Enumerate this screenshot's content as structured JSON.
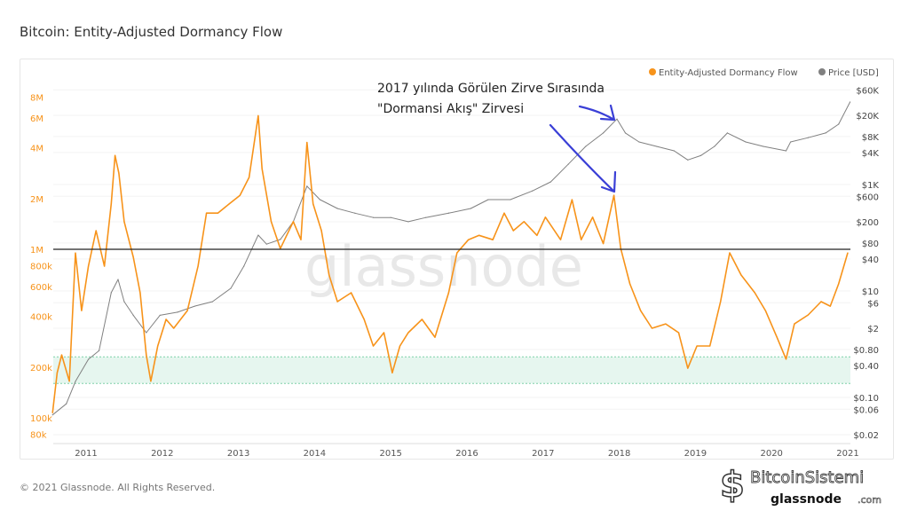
{
  "title": "Bitcoin: Entity-Adjusted Dormancy Flow",
  "footer": "© 2021 Glassnode. All Rights Reserved.",
  "watermark": "glassnode",
  "logo": {
    "brand": "BitcoinSistemi",
    "sub": "glassnode",
    "tld": ".com"
  },
  "annotation": {
    "line1": "2017 yılında Görülen Zirve Sırasında",
    "line2": "\"Dormansi Akış\" Zirvesi",
    "arrow_color": "#3a3fd6"
  },
  "chart_data": {
    "type": "line",
    "title": "Bitcoin: Entity-Adjusted Dormancy Flow",
    "legend_position": "top-right",
    "x_ticks": [
      "2011",
      "2012",
      "2013",
      "2014",
      "2015",
      "2016",
      "2017",
      "2018",
      "2019",
      "2020",
      "2021"
    ],
    "y_left": {
      "scale": "log",
      "ticks": [
        {
          "v": 8000000,
          "l": "8M"
        },
        {
          "v": 6000000,
          "l": "6M"
        },
        {
          "v": 4000000,
          "l": "4M"
        },
        {
          "v": 2000000,
          "l": "2M"
        },
        {
          "v": 1000000,
          "l": "1M"
        },
        {
          "v": 800000,
          "l": "800k"
        },
        {
          "v": 600000,
          "l": "600k"
        },
        {
          "v": 400000,
          "l": "400k"
        },
        {
          "v": 200000,
          "l": "200k"
        },
        {
          "v": 100000,
          "l": "100k"
        },
        {
          "v": 80000,
          "l": "80k"
        }
      ],
      "color": "#f7931a"
    },
    "y_right": {
      "scale": "log",
      "ticks": [
        {
          "v": 60000,
          "l": "$60K"
        },
        {
          "v": 20000,
          "l": "$20K"
        },
        {
          "v": 8000,
          "l": "$8K"
        },
        {
          "v": 4000,
          "l": "$4K"
        },
        {
          "v": 1000,
          "l": "$1K"
        },
        {
          "v": 600,
          "l": "$600"
        },
        {
          "v": 200,
          "l": "$200"
        },
        {
          "v": 80,
          "l": "$80"
        },
        {
          "v": 40,
          "l": "$40"
        },
        {
          "v": 10,
          "l": "$10"
        },
        {
          "v": 6,
          "l": "$6"
        },
        {
          "v": 2,
          "l": "$2"
        },
        {
          "v": 0.8,
          "l": "$0.80"
        },
        {
          "v": 0.4,
          "l": "$0.40"
        },
        {
          "v": 0.1,
          "l": "$0.10"
        },
        {
          "v": 0.06,
          "l": "$0.06"
        },
        {
          "v": 0.02,
          "l": "$0.02"
        }
      ]
    },
    "reference_line": 1000000,
    "green_band": [
      160000,
      230000
    ],
    "series": [
      {
        "name": "Entity-Adjusted Dormancy Flow",
        "color": "#f7931a",
        "axis": "left",
        "x": [
          2010.56,
          2010.62,
          2010.68,
          2010.78,
          2010.86,
          2010.94,
          2011.03,
          2011.13,
          2011.24,
          2011.33,
          2011.38,
          2011.43,
          2011.5,
          2011.62,
          2011.71,
          2011.79,
          2011.85,
          2011.94,
          2012.05,
          2012.15,
          2012.33,
          2012.47,
          2012.58,
          2012.73,
          2012.88,
          2013.02,
          2013.14,
          2013.26,
          2013.31,
          2013.43,
          2013.55,
          2013.72,
          2013.82,
          2013.9,
          2013.98,
          2014.09,
          2014.19,
          2014.3,
          2014.48,
          2014.65,
          2014.77,
          2014.91,
          2015.02,
          2015.12,
          2015.23,
          2015.41,
          2015.58,
          2015.76,
          2015.87,
          2016.02,
          2016.16,
          2016.34,
          2016.49,
          2016.61,
          2016.75,
          2016.92,
          2017.03,
          2017.23,
          2017.38,
          2017.5,
          2017.65,
          2017.79,
          2017.93,
          2018.02,
          2018.14,
          2018.28,
          2018.43,
          2018.61,
          2018.78,
          2018.9,
          2019.02,
          2019.19,
          2019.33,
          2019.45,
          2019.6,
          2019.78,
          2019.92,
          2020.07,
          2020.19,
          2020.3,
          2020.48,
          2020.65,
          2020.77,
          2020.88,
          2021.0
        ],
        "y": [
          107000,
          185000,
          236000,
          165000,
          950000,
          433000,
          794000,
          1290000,
          794000,
          1860000,
          3600000,
          2830000,
          1460000,
          897000,
          552000,
          236000,
          165000,
          267000,
          384000,
          340000,
          433000,
          794000,
          1640000,
          1640000,
          1860000,
          2090000,
          2670000,
          6200000,
          3000000,
          1460000,
          1010000,
          1460000,
          1140000,
          4300000,
          1860000,
          1290000,
          704000,
          489000,
          552000,
          384000,
          267000,
          320000,
          185000,
          267000,
          320000,
          384000,
          301000,
          552000,
          953000,
          1140000,
          1210000,
          1140000,
          1640000,
          1290000,
          1460000,
          1210000,
          1550000,
          1140000,
          1970000,
          1140000,
          1550000,
          1080000,
          2090000,
          1010000,
          623000,
          433000,
          340000,
          361000,
          320000,
          197000,
          267000,
          267000,
          489000,
          953000,
          704000,
          552000,
          433000,
          301000,
          223000,
          361000,
          408000,
          489000,
          460000,
          623000,
          953000
        ]
      },
      {
        "name": "Price [USD]",
        "color": "#808080",
        "axis": "right",
        "x": [
          2010.56,
          2010.74,
          2010.86,
          2011.03,
          2011.17,
          2011.33,
          2011.42,
          2011.5,
          2011.62,
          2011.79,
          2011.97,
          2012.2,
          2012.43,
          2012.66,
          2012.9,
          2013.07,
          2013.26,
          2013.37,
          2013.55,
          2013.72,
          2013.9,
          2014.07,
          2014.3,
          2014.53,
          2014.77,
          2015.0,
          2015.23,
          2015.46,
          2015.76,
          2016.05,
          2016.28,
          2016.57,
          2016.86,
          2017.1,
          2017.33,
          2017.56,
          2017.79,
          2017.97,
          2018.08,
          2018.26,
          2018.49,
          2018.72,
          2018.9,
          2019.07,
          2019.25,
          2019.42,
          2019.66,
          2019.89,
          2020.19,
          2020.25,
          2020.48,
          2020.71,
          2020.88,
          2021.03
        ],
        "y": [
          0.047,
          0.076,
          0.2,
          0.52,
          0.76,
          9.3,
          16.5,
          6.3,
          3.5,
          1.65,
          3.5,
          4.0,
          5.2,
          6.3,
          11.2,
          29,
          112,
          76,
          93,
          200,
          930,
          520,
          355,
          290,
          240,
          240,
          200,
          240,
          290,
          355,
          520,
          520,
          760,
          1120,
          2400,
          5200,
          9300,
          17000,
          9300,
          6300,
          5200,
          4300,
          2900,
          3500,
          5200,
          9300,
          6300,
          5200,
          4300,
          6300,
          7600,
          9300,
          13600,
          35500
        ]
      }
    ]
  }
}
